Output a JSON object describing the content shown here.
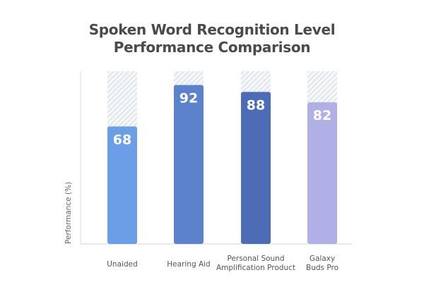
{
  "chart_data": {
    "type": "bar",
    "title": [
      "Spoken Word Recognition Level",
      "Performance Comparison"
    ],
    "xlabel": "",
    "ylabel": "Performance (%)",
    "ylim": [
      0,
      100
    ],
    "grid": false,
    "categories": [
      [
        "Unaided"
      ],
      [
        "Hearing Aid"
      ],
      [
        "Personal Sound",
        "Amplification Product"
      ],
      [
        "Galaxy",
        "Buds Pro"
      ]
    ],
    "values": [
      68,
      92,
      88,
      82
    ],
    "data_labels": [
      "68",
      "92",
      "88",
      "82"
    ],
    "colors": [
      "#6a9ee6",
      "#5b82cb",
      "#4c6db5",
      "#b0b0e6"
    ],
    "background_fill": "hatched to 100"
  }
}
